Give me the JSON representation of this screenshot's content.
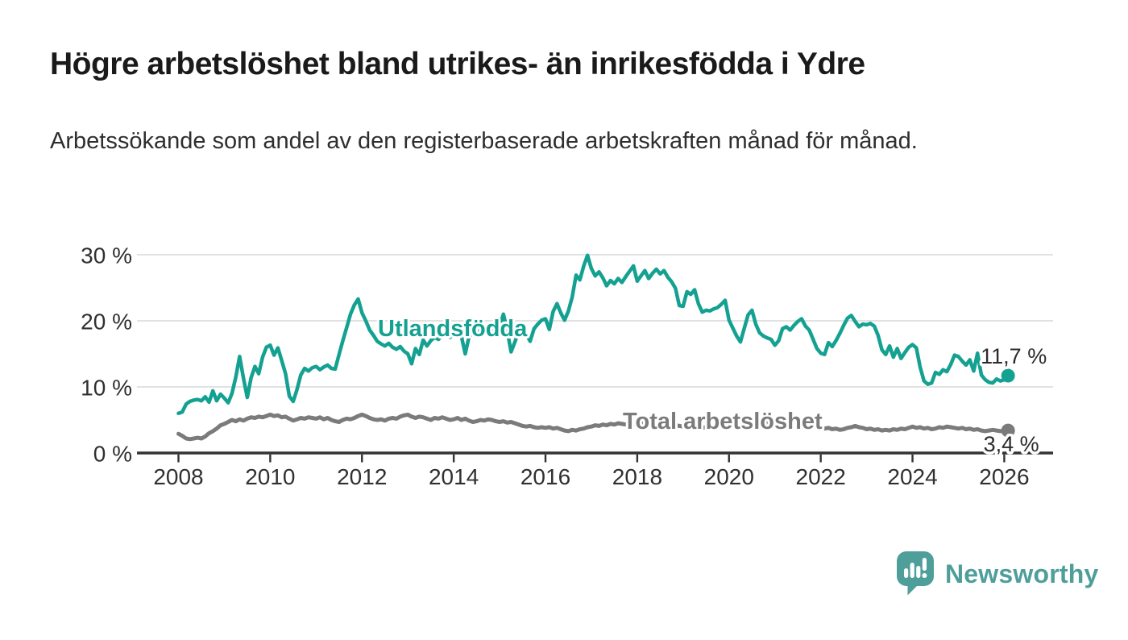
{
  "header": {
    "title": "Högre arbetslöshet bland utrikes- än inrikesfödda i Ydre",
    "subtitle": "Arbetssökande som andel av den registerbaserade arbetskraften månad för månad."
  },
  "chart_data": {
    "type": "line",
    "unit": "%",
    "x_start": "2008-01",
    "x_end": "2026-02",
    "x_interval": "monthly",
    "grid": "horizontal",
    "legend": "inline-labels",
    "ylim": [
      0,
      30
    ],
    "y_axis": {
      "tick_values": [
        0,
        10,
        20,
        30
      ],
      "tick_labels": [
        "0 %",
        "10 %",
        "20 %",
        "30 %"
      ]
    },
    "x_axis": {
      "tick_labels": [
        "2008",
        "2010",
        "2012",
        "2014",
        "2016",
        "2018",
        "2020",
        "2022",
        "2024",
        "2026"
      ],
      "tick_interval_months": 24
    },
    "series": [
      {
        "name": "Utlandsfödda",
        "color": "#14A191",
        "end_value": 11.7,
        "end_label": "11,7 %",
        "values": [
          6.0,
          6.2,
          7.4,
          7.8,
          8.0,
          8.1,
          7.9,
          8.5,
          7.7,
          9.4,
          7.9,
          8.9,
          8.3,
          7.6,
          9.0,
          11.5,
          14.6,
          11.3,
          8.4,
          11.4,
          13.1,
          12.0,
          14.5,
          16.0,
          16.3,
          14.8,
          15.9,
          14.0,
          12.0,
          8.6,
          7.8,
          9.6,
          11.8,
          12.8,
          12.4,
          12.9,
          13.1,
          12.6,
          13.0,
          13.3,
          12.8,
          12.7,
          14.9,
          17.0,
          19.0,
          21.0,
          22.4,
          23.3,
          21.2,
          20.0,
          18.6,
          17.8,
          16.9,
          16.5,
          16.2,
          16.6,
          16.0,
          15.7,
          16.1,
          15.4,
          15.0,
          13.5,
          15.8,
          14.9,
          17.1,
          16.2,
          17.0,
          17.5,
          17.2,
          17.8,
          18.0,
          17.5,
          17.9,
          18.3,
          17.7,
          15.0,
          17.6,
          18.2,
          18.6,
          18.1,
          18.8,
          19.0,
          18.5,
          18.9,
          19.2,
          21.0,
          18.5,
          15.3,
          16.8,
          18.4,
          19.6,
          18.0,
          16.9,
          18.8,
          19.5,
          20.1,
          20.3,
          18.7,
          21.4,
          22.6,
          21.2,
          20.1,
          21.5,
          23.6,
          26.9,
          26.2,
          28.3,
          29.9,
          27.9,
          26.8,
          27.4,
          26.5,
          25.3,
          26.1,
          25.6,
          26.4,
          25.8,
          26.7,
          27.5,
          28.3,
          26.0,
          26.8,
          27.6,
          26.4,
          27.2,
          27.8,
          27.1,
          27.6,
          26.6,
          25.9,
          24.9,
          22.3,
          22.2,
          24.4,
          24.0,
          24.7,
          22.6,
          21.3,
          21.6,
          21.5,
          21.8,
          22.0,
          22.5,
          23.1,
          20.1,
          18.9,
          17.7,
          16.8,
          18.9,
          20.9,
          21.6,
          19.5,
          18.2,
          17.7,
          17.4,
          17.2,
          16.3,
          17.0,
          18.8,
          19.1,
          18.6,
          19.3,
          19.9,
          20.3,
          19.2,
          18.6,
          17.2,
          15.8,
          15.1,
          14.9,
          16.7,
          16.1,
          17.0,
          18.1,
          19.3,
          20.4,
          20.8,
          19.9,
          19.1,
          19.5,
          19.4,
          19.6,
          19.2,
          17.8,
          15.6,
          14.9,
          16.2,
          14.5,
          15.8,
          14.3,
          15.2,
          16.0,
          16.4,
          15.9,
          13.0,
          10.9,
          10.4,
          10.6,
          12.2,
          11.9,
          12.6,
          12.3,
          13.4,
          14.8,
          14.6,
          13.9,
          13.3,
          14.1,
          12.4,
          15.1,
          11.8,
          11.1,
          10.7,
          10.6,
          11.2,
          10.9,
          11.1,
          11.7
        ]
      },
      {
        "name": "Total arbetslöshet",
        "color": "#7B7B7B",
        "end_value": 3.4,
        "end_label": "3,4 %",
        "values": [
          2.9,
          2.6,
          2.2,
          2.1,
          2.2,
          2.3,
          2.2,
          2.5,
          3.0,
          3.3,
          3.7,
          4.2,
          4.4,
          4.7,
          5.0,
          4.8,
          5.1,
          4.9,
          5.2,
          5.4,
          5.3,
          5.5,
          5.4,
          5.6,
          5.8,
          5.6,
          5.7,
          5.4,
          5.5,
          5.2,
          4.9,
          5.1,
          5.3,
          5.2,
          5.4,
          5.3,
          5.2,
          5.4,
          5.1,
          5.3,
          5.0,
          4.8,
          4.7,
          5.0,
          5.2,
          5.1,
          5.3,
          5.6,
          5.8,
          5.6,
          5.3,
          5.1,
          5.0,
          5.1,
          4.9,
          5.2,
          5.3,
          5.2,
          5.5,
          5.7,
          5.8,
          5.5,
          5.3,
          5.5,
          5.4,
          5.2,
          5.0,
          5.3,
          5.2,
          5.4,
          5.2,
          5.0,
          5.1,
          5.3,
          5.0,
          5.2,
          4.9,
          4.7,
          4.8,
          5.0,
          4.9,
          5.1,
          5.0,
          4.8,
          4.7,
          4.8,
          4.6,
          4.7,
          4.5,
          4.3,
          4.1,
          4.0,
          4.1,
          3.9,
          3.8,
          3.9,
          3.8,
          3.9,
          3.7,
          3.8,
          3.6,
          3.4,
          3.3,
          3.5,
          3.4,
          3.6,
          3.7,
          3.9,
          4.0,
          4.2,
          4.1,
          4.3,
          4.2,
          4.4,
          4.3,
          4.5,
          4.4,
          4.3,
          4.5,
          4.4,
          4.3,
          4.5,
          4.4,
          4.6,
          4.4,
          4.3,
          4.2,
          4.4,
          4.3,
          4.1,
          4.2,
          4.1,
          4.0,
          4.2,
          4.1,
          3.9,
          4.0,
          3.8,
          3.9,
          4.1,
          4.0,
          4.2,
          4.1,
          4.3,
          4.4,
          4.3,
          4.5,
          4.8,
          5.0,
          5.1,
          4.9,
          5.0,
          4.8,
          4.7,
          4.6,
          4.7,
          4.6,
          4.5,
          4.6,
          4.4,
          4.3,
          4.4,
          4.2,
          4.1,
          4.0,
          4.1,
          3.9,
          4.0,
          3.9,
          3.7,
          3.8,
          3.6,
          3.7,
          3.5,
          3.6,
          3.8,
          3.9,
          4.1,
          3.9,
          3.8,
          3.6,
          3.7,
          3.5,
          3.6,
          3.4,
          3.5,
          3.4,
          3.6,
          3.5,
          3.7,
          3.6,
          3.8,
          4.0,
          3.8,
          3.9,
          3.7,
          3.8,
          3.6,
          3.7,
          3.9,
          3.8,
          4.0,
          3.9,
          3.8,
          3.7,
          3.8,
          3.6,
          3.7,
          3.5,
          3.6,
          3.4,
          3.3,
          3.4,
          3.5,
          3.4,
          3.3,
          3.3,
          3.4
        ]
      }
    ],
    "colors": {
      "gridline": "#D8D8D8",
      "axis": "#333333",
      "tick_text": "#303030",
      "annotation_text": "#2B2B2B"
    }
  },
  "branding": {
    "logo_text": "Newsworthy",
    "logo_color": "#4E9E9A",
    "logo_icon": "speech-bubble-bar-chart-exclamation"
  }
}
